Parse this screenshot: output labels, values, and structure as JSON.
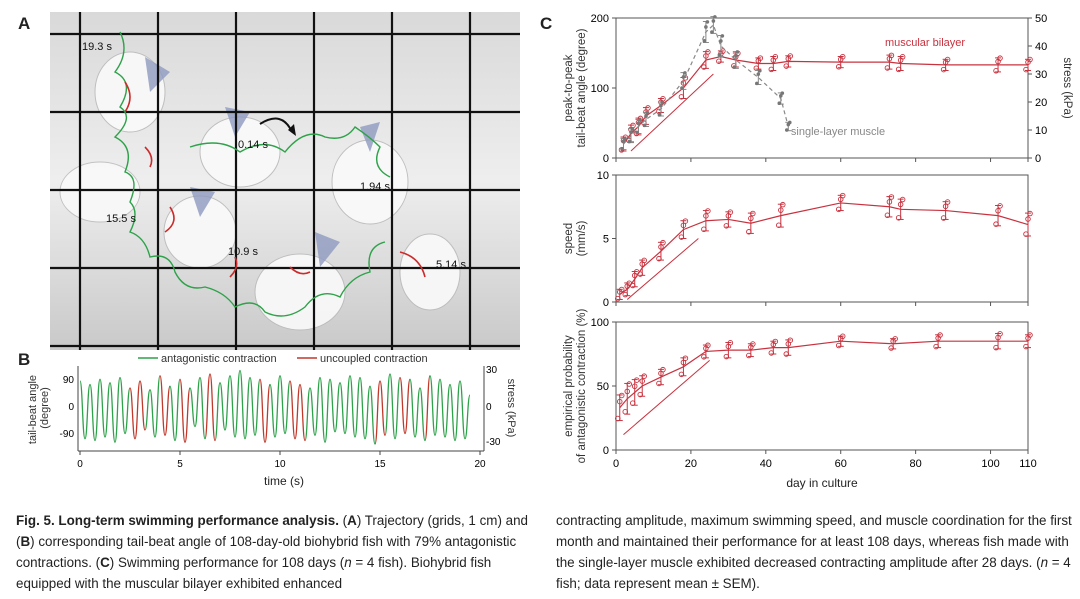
{
  "panel_a": {
    "label": "A",
    "time_labels": [
      "19.3 s",
      "0.14 s",
      "1.94 s",
      "15.5 s",
      "10.9 s",
      "5.14 s"
    ]
  },
  "panel_b": {
    "label": "B",
    "legend": [
      "antagonistic contraction",
      "uncoupled contraction"
    ],
    "ylabel_left": [
      "tail-beat angle",
      "(degree)"
    ],
    "ylabel_right": "stress (kPa)",
    "xlabel": "time (s)",
    "yticks_left": [
      "90",
      "0",
      "-90"
    ],
    "yticks_right": [
      "30",
      "0",
      "-30"
    ],
    "xticks": [
      "0",
      "5",
      "10",
      "15",
      "20"
    ]
  },
  "panel_c": {
    "label": "C",
    "xlabel": "day in culture",
    "xticks": [
      "0",
      "20",
      "40",
      "60",
      "80",
      "100",
      "110"
    ]
  },
  "chart_data": [
    {
      "type": "line",
      "title": "tail-beat angle vs time",
      "xlabel": "time (s)",
      "ylabel": "tail-beat angle (degree)",
      "ylabel_right": "stress (kPa)",
      "xlim": [
        0,
        20
      ],
      "ylim": [
        -120,
        120
      ],
      "series": [
        {
          "name": "antagonistic contraction",
          "color": "#2ea24a"
        },
        {
          "name": "uncoupled contraction",
          "color": "#c0392b"
        }
      ],
      "x": [
        0.0,
        0.25,
        0.5,
        0.75,
        1.0,
        1.25,
        1.5,
        1.75,
        2.0,
        2.25,
        2.5,
        2.75,
        3.0,
        3.25,
        3.5,
        3.75,
        4.0,
        4.25,
        4.5,
        4.75,
        5.0,
        5.25,
        5.5,
        5.75,
        6.0,
        6.25,
        6.5,
        6.75,
        7.0,
        7.25,
        7.5,
        7.75,
        8.0,
        8.25,
        8.5,
        8.75,
        9.0,
        9.25,
        9.5,
        9.75,
        10.0,
        10.25,
        10.5,
        10.75,
        11.0,
        11.25,
        11.5,
        11.75,
        12.0,
        12.25,
        12.5,
        12.75,
        13.0,
        13.25,
        13.5,
        13.75,
        14.0,
        14.25,
        14.5,
        14.75,
        15.0,
        15.25,
        15.5,
        15.75,
        16.0,
        16.25,
        16.5,
        16.75,
        17.0,
        17.25,
        17.5,
        17.75,
        18.0,
        18.25,
        18.5,
        18.75,
        19.0,
        19.25,
        19.5
      ],
      "y": [
        80,
        -85,
        70,
        -90,
        85,
        -80,
        75,
        -95,
        90,
        -70,
        60,
        -85,
        80,
        -60,
        55,
        -80,
        95,
        -75,
        65,
        -90,
        85,
        -95,
        60,
        -50,
        90,
        -85,
        100,
        -90,
        75,
        -60,
        95,
        -80,
        110,
        -85,
        90,
        -75,
        85,
        -95,
        70,
        -80,
        95,
        -70,
        80,
        -85,
        70,
        -90,
        60,
        -75,
        90,
        -95,
        85,
        -65,
        75,
        -70,
        95,
        -80,
        90,
        -85,
        65,
        -100,
        80,
        -75,
        100,
        -85,
        90,
        -70,
        85,
        -80,
        60,
        -90,
        95,
        -75,
        85,
        -80,
        70,
        -90,
        80,
        -85,
        40
      ],
      "uncoupled_segments": [
        [
          2.6,
          3.2
        ],
        [
          4.0,
          4.4
        ],
        [
          4.9,
          5.6
        ],
        [
          6.3,
          6.7
        ],
        [
          9.1,
          9.4
        ],
        [
          10.6,
          11.2
        ],
        [
          14.8,
          15.2
        ],
        [
          16.1,
          16.4
        ],
        [
          17.2,
          17.5
        ]
      ]
    },
    {
      "type": "scatter",
      "title": "peak-to-peak tail-beat angle",
      "xlabel": "day in culture",
      "ylabel": "peak-to-peak tail-beat angle (degree)",
      "ylabel_right": "stress (kPa)",
      "ylim": [
        0,
        200
      ],
      "ylim_right": [
        0,
        50
      ],
      "yticks": [
        "0",
        "100",
        "200"
      ],
      "yticks_right": [
        "0",
        "10",
        "20",
        "30",
        "40",
        "50"
      ],
      "annotations": [
        "muscular bilayer",
        "single-layer muscle"
      ],
      "series": [
        {
          "name": "muscular bilayer",
          "color": "#c8323f",
          "x": [
            2,
            4,
            6,
            8,
            12,
            18,
            24,
            28,
            32,
            38,
            42,
            46,
            60,
            73,
            76,
            88,
            102,
            110
          ],
          "y": [
            20,
            35,
            45,
            60,
            75,
            100,
            140,
            145,
            140,
            135,
            135,
            138,
            137,
            137,
            135,
            133,
            133,
            133
          ],
          "err": [
            10,
            12,
            12,
            12,
            10,
            15,
            12,
            8,
            10,
            8,
            10,
            8,
            8,
            10,
            10,
            8,
            10,
            8
          ]
        },
        {
          "name": "single-layer muscle",
          "color": "#888888",
          "x": [
            2,
            4,
            6,
            8,
            12,
            18,
            24,
            26,
            28,
            32,
            38,
            44,
            46
          ],
          "y": [
            20,
            32,
            45,
            55,
            70,
            110,
            180,
            190,
            160,
            140,
            115,
            85,
            45
          ],
          "err": [
            8,
            10,
            10,
            10,
            10,
            12,
            15,
            12,
            15,
            12,
            10,
            8,
            6
          ]
        }
      ]
    },
    {
      "type": "scatter",
      "title": "speed",
      "xlabel": "day in culture",
      "ylabel": "speed (mm/s)",
      "ylim": [
        0,
        10
      ],
      "yticks": [
        "0",
        "5",
        "10"
      ],
      "series": [
        {
          "name": "muscular bilayer",
          "color": "#c8323f",
          "x": [
            1,
            3,
            5,
            7,
            12,
            18,
            24,
            30,
            36,
            44,
            60,
            73,
            76,
            88,
            102,
            110
          ],
          "y": [
            0.6,
            1.0,
            1.8,
            2.7,
            4.0,
            5.7,
            6.4,
            6.5,
            6.2,
            6.8,
            7.8,
            7.5,
            7.3,
            7.2,
            6.8,
            6.1
          ],
          "err": [
            0.4,
            0.5,
            0.6,
            0.6,
            0.7,
            0.7,
            0.8,
            0.6,
            0.8,
            0.9,
            0.6,
            0.8,
            0.8,
            0.7,
            0.8,
            0.9
          ]
        }
      ]
    },
    {
      "type": "scatter",
      "title": "empirical probability of antagonistic contraction",
      "xlabel": "day in culture",
      "ylabel": "empirical probability of antagonistic contraction (%)",
      "ylim": [
        0,
        100
      ],
      "yticks": [
        "0",
        "50",
        "100"
      ],
      "xlim": [
        0,
        110
      ],
      "xticks": [
        "0",
        "20",
        "40",
        "60",
        "80",
        "100",
        "110"
      ],
      "series": [
        {
          "name": "muscular bilayer",
          "color": "#c8323f",
          "x": [
            1,
            3,
            5,
            7,
            12,
            18,
            24,
            30,
            36,
            42,
            46,
            60,
            74,
            86,
            102,
            110
          ],
          "y": [
            33,
            40,
            45,
            50,
            57,
            65,
            77,
            78,
            78,
            80,
            80,
            85,
            83,
            85,
            85,
            85
          ],
          "err": [
            10,
            12,
            10,
            8,
            6,
            7,
            5,
            6,
            5,
            5,
            6,
            4,
            4,
            5,
            6,
            5
          ]
        }
      ]
    }
  ],
  "caption": {
    "left": {
      "figure_label": "Fig. 5. Long-term swimming performance analysis.",
      "p1a": " (",
      "a_label": "A",
      "p1b": ") Trajectory (grids, 1 cm) and (",
      "b_label": "B",
      "p1c": ") corresponding tail-beat angle of 108-day-old biohybrid fish with 79% antagonistic contractions. (",
      "c_label": "C",
      "p1d": ") Swimming performance for 108 days (",
      "n_italic": "n",
      "p1e": " = 4 fish). Biohybrid fish equipped with the muscular bilayer exhibited enhanced"
    },
    "right": {
      "p2a": "contracting amplitude, maximum swimming speed, and muscle coordination for the first month and maintained their performance for at least 108 days, whereas fish made with the single-layer muscle exhibited decreased contracting amplitude after 28 days. (",
      "n_italic": "n",
      "p2b": " = 4 fish; data represent mean ± SEM)."
    }
  }
}
